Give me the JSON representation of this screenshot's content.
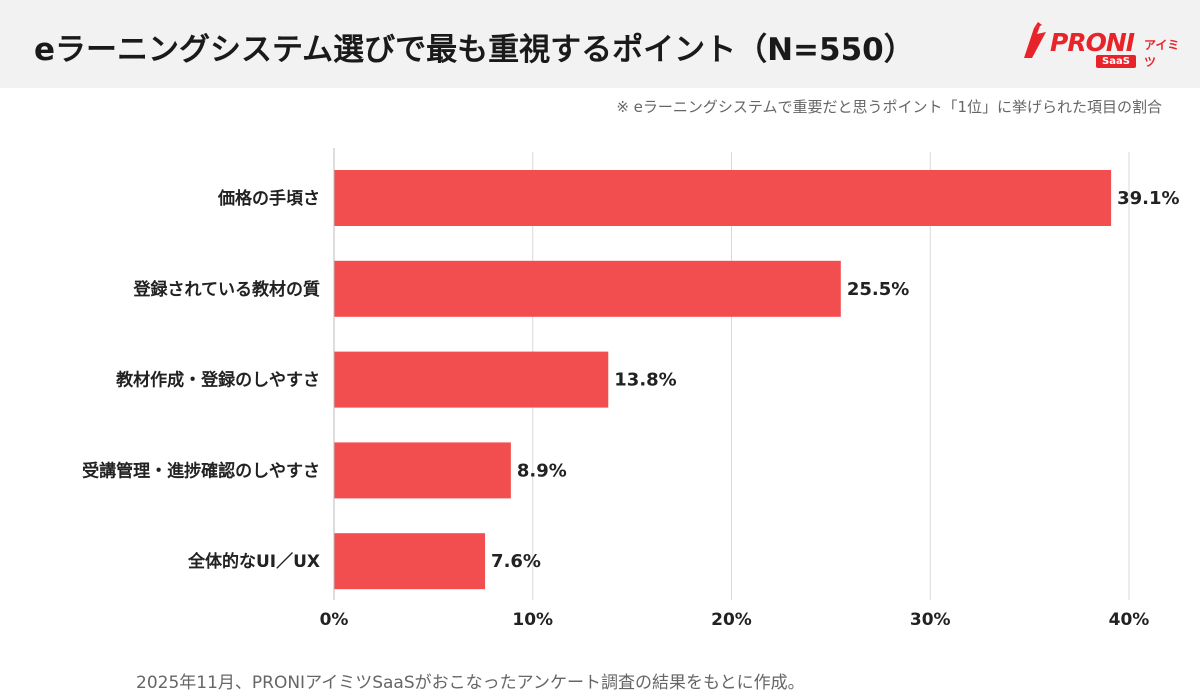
{
  "title": "eラーニングシステム選びで最も重視するポイント（N=550）",
  "note": "※ eラーニングシステムで重要だと思うポイント「1位」に挙げられた項目の割合",
  "footer": "2025年11月、PRONIアイミツSaaSがおこなったアンケート調査の結果をもとに作成。",
  "logo": {
    "name": "PRONI",
    "sub": "アイミツ",
    "badge": "SaaS"
  },
  "colors": {
    "bar": "#f24e4f",
    "grid": "#d9d9d9",
    "header_bg": "#f2f2f2",
    "brand": "#e8242b"
  },
  "chart_data": {
    "type": "bar",
    "orientation": "horizontal",
    "categories": [
      "価格の手頃さ",
      "登録されている教材の質",
      "教材作成・登録のしやすさ",
      "受講管理・進捗確認のしやすさ",
      "全体的なUI／UX"
    ],
    "values": [
      39.1,
      25.5,
      13.8,
      8.9,
      7.6
    ],
    "value_labels": [
      "39.1%",
      "25.5%",
      "13.8%",
      "8.9%",
      "7.6%"
    ],
    "xlim": [
      0,
      40
    ],
    "xticks": [
      0,
      10,
      20,
      30,
      40
    ],
    "xtick_labels": [
      "0%",
      "10%",
      "20%",
      "30%",
      "40%"
    ],
    "grid": true,
    "legend": false
  }
}
